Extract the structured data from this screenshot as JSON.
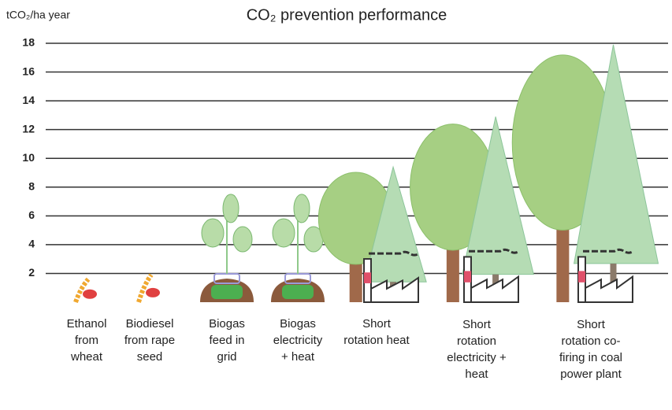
{
  "chart_data": {
    "type": "pictograph",
    "title": "CO₂ prevention performance",
    "y_label": "tCO₂/ha year",
    "categories": [
      "Ethanol from wheat",
      "Biodiesel from rape seed",
      "Biogas feed in grid",
      "Biogas electricity + heat",
      "Short rotation heat",
      "Short rotation electricity + heat",
      "Short rotation co-firing in coal power plant"
    ],
    "values": [
      1.6,
      1.9,
      7.5,
      7.5,
      9.4,
      12.9,
      17.9
    ],
    "ylim": [
      0,
      18
    ],
    "yticks": [
      2,
      4,
      6,
      8,
      10,
      12,
      14,
      16,
      18
    ],
    "grid": true
  }
}
